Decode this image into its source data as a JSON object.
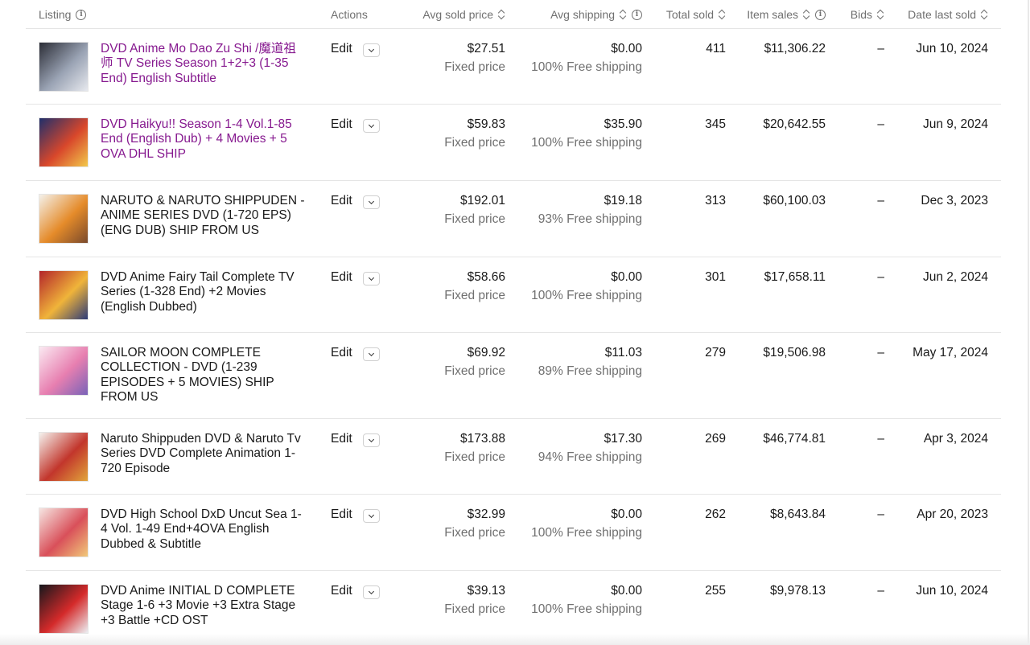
{
  "columns": {
    "listing": "Listing",
    "actions": "Actions",
    "avg_sold_price": "Avg sold price",
    "avg_shipping": "Avg shipping",
    "total_sold": "Total sold",
    "item_sales": "Item sales",
    "bids": "Bids",
    "date_last_sold": "Date last sold"
  },
  "edit_label": "Edit",
  "rows": [
    {
      "title": "DVD Anime Mo Dao Zu Shi /魔道祖师 TV Series Season 1+2+3 (1-35 End) English Subtitle",
      "visited": true,
      "price": "$27.51",
      "format": "Fixed price",
      "shipping": "$0.00",
      "free_shipping": "100% Free shipping",
      "total_sold": "411",
      "item_sales": "$11,306.22",
      "bids": "–",
      "date": "Jun 10, 2024",
      "thumb_colors": [
        "#2b2d36",
        "#9aa3b4",
        "#e7e9ee"
      ]
    },
    {
      "title": "DVD Haikyu!! Season 1-4 Vol.1-85 End (English Dub) + 4 Movies + 5 OVA DHL SHIP",
      "visited": true,
      "price": "$59.83",
      "format": "Fixed price",
      "shipping": "$35.90",
      "free_shipping": "100% Free shipping",
      "total_sold": "345",
      "item_sales": "$20,642.55",
      "bids": "–",
      "date": "Jun 9, 2024",
      "thumb_colors": [
        "#1f2f6b",
        "#d8472b",
        "#f2c84b"
      ]
    },
    {
      "title": "NARUTO & NARUTO SHIPPUDEN - ANIME SERIES DVD (1-720 EPS) (ENG DUB) SHIP FROM US",
      "visited": false,
      "price": "$192.01",
      "format": "Fixed price",
      "shipping": "$19.18",
      "free_shipping": "93% Free shipping",
      "total_sold": "313",
      "item_sales": "$60,100.03",
      "bids": "–",
      "date": "Dec 3, 2023",
      "thumb_colors": [
        "#f4f1ea",
        "#e58b2a",
        "#7a4a2c"
      ]
    },
    {
      "title": "DVD Anime Fairy Tail Complete TV Series (1-328 End) +2 Movies (English Dubbed)",
      "visited": false,
      "price": "$58.66",
      "format": "Fixed price",
      "shipping": "$0.00",
      "free_shipping": "100% Free shipping",
      "total_sold": "301",
      "item_sales": "$17,658.11",
      "bids": "–",
      "date": "Jun 2, 2024",
      "thumb_colors": [
        "#b3242a",
        "#f0b43a",
        "#2c3b78"
      ]
    },
    {
      "title": "SAILOR MOON COMPLETE COLLECTION - DVD (1-239 EPISODES + 5 MOVIES) SHIP FROM US",
      "visited": false,
      "price": "$69.92",
      "format": "Fixed price",
      "shipping": "$11.03",
      "free_shipping": "89% Free shipping",
      "total_sold": "279",
      "item_sales": "$19,506.98",
      "bids": "–",
      "date": "May 17, 2024",
      "thumb_colors": [
        "#fbeaf2",
        "#e77fb0",
        "#7a63b8"
      ]
    },
    {
      "title": "Naruto Shippuden DVD & Naruto Tv Series DVD Complete Animation 1-720 Episode",
      "visited": false,
      "price": "$173.88",
      "format": "Fixed price",
      "shipping": "$17.30",
      "free_shipping": "94% Free shipping",
      "total_sold": "269",
      "item_sales": "$46,774.81",
      "bids": "–",
      "date": "Apr 3, 2024",
      "thumb_colors": [
        "#f5f2ee",
        "#c2362c",
        "#e1a43b"
      ]
    },
    {
      "title": "DVD High School DxD Uncut Sea 1-4 Vol. 1-49 End+4OVA English Dubbed & Subtitle",
      "visited": false,
      "price": "$32.99",
      "format": "Fixed price",
      "shipping": "$0.00",
      "free_shipping": "100% Free shipping",
      "total_sold": "262",
      "item_sales": "$8,643.84",
      "bids": "–",
      "date": "Apr 20, 2023",
      "thumb_colors": [
        "#f6e6e2",
        "#d9505a",
        "#f1c97a"
      ]
    },
    {
      "title": "DVD Anime INITIAL D COMPLETE Stage 1-6 +3 Movie +3 Extra Stage +3 Battle +CD OST",
      "visited": false,
      "price": "$39.13",
      "format": "Fixed price",
      "shipping": "$0.00",
      "free_shipping": "100% Free shipping",
      "total_sold": "255",
      "item_sales": "$9,978.13",
      "bids": "–",
      "date": "Jun 10, 2024",
      "thumb_colors": [
        "#15171c",
        "#d42a2a",
        "#eceff3"
      ]
    }
  ]
}
